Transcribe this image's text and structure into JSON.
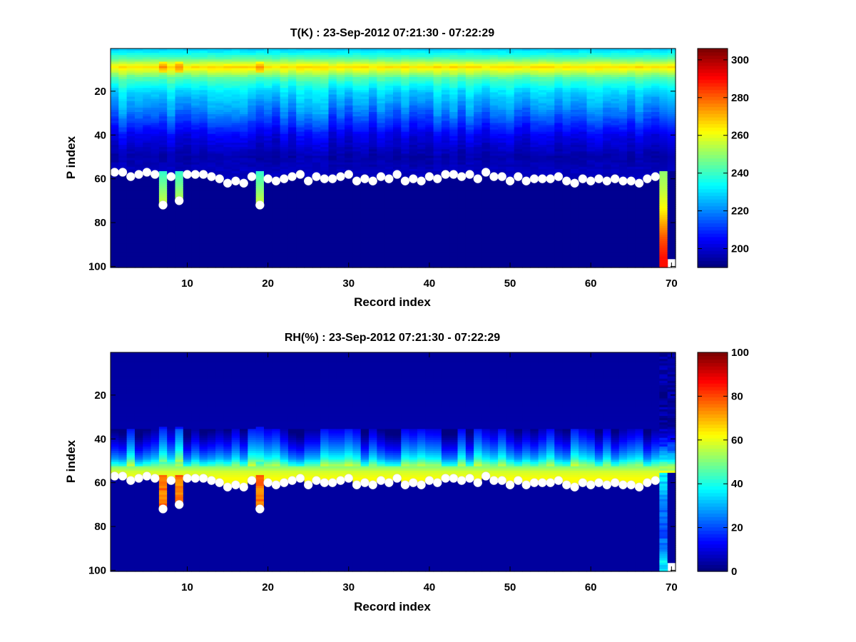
{
  "chart_data": [
    {
      "type": "heatmap",
      "title": "T(K) : 23-Sep-2012 07:21:30 - 07:22:29",
      "xlabel": "Record index",
      "ylabel": "P index",
      "xlim": [
        0.5,
        70.5
      ],
      "ylim": [
        100.5,
        0.5
      ],
      "y_reversed": true,
      "xticks": [
        10,
        20,
        30,
        40,
        50,
        60,
        70
      ],
      "yticks": [
        20,
        40,
        60,
        80,
        100
      ],
      "colormap": "jet",
      "clim": [
        190,
        306
      ],
      "colorbar_ticks": [
        200,
        220,
        240,
        260,
        280,
        300
      ],
      "record_count": 70,
      "level_count": 100,
      "tropopause_peak": {
        "p_index": 9,
        "value_k": 266
      },
      "profile_knots": {
        "p_index": [
          1,
          5,
          9,
          14,
          20,
          30,
          40,
          50,
          56
        ],
        "value_k": [
          228,
          243,
          266,
          243,
          230,
          218,
          203,
          195,
          197
        ]
      },
      "below_surface_value_k": 192,
      "last_record_profile": {
        "p_index": [
          57,
          65,
          73,
          80,
          87,
          96
        ],
        "value_k": [
          250,
          255,
          262,
          272,
          282,
          290
        ]
      },
      "missing_levels_last_record": {
        "from_p_index": 97,
        "to_p_index": 100
      },
      "surface_markers": {
        "marker_color": "#ffffff",
        "record": [
          1,
          2,
          3,
          4,
          5,
          6,
          7,
          8,
          9,
          10,
          11,
          12,
          13,
          14,
          15,
          16,
          17,
          18,
          19,
          20,
          21,
          22,
          23,
          24,
          25,
          26,
          27,
          28,
          29,
          30,
          31,
          32,
          33,
          34,
          35,
          36,
          37,
          38,
          39,
          40,
          41,
          42,
          43,
          44,
          45,
          46,
          47,
          48,
          49,
          50,
          51,
          52,
          53,
          54,
          55,
          56,
          57,
          58,
          59,
          60,
          61,
          62,
          63,
          64,
          65,
          66,
          67,
          68
        ],
        "p_index": [
          57,
          57,
          59,
          58,
          57,
          58,
          72,
          59,
          70,
          58,
          58,
          58,
          59,
          60,
          62,
          61,
          62,
          59,
          72,
          60,
          61,
          60,
          59,
          58,
          61,
          59,
          60,
          60,
          59,
          58,
          61,
          60,
          61,
          59,
          60,
          58,
          61,
          60,
          61,
          59,
          60,
          58,
          58,
          59,
          58,
          60,
          57,
          59,
          59,
          61,
          59,
          61,
          60,
          60,
          60,
          59,
          61,
          62,
          60,
          61,
          60,
          61,
          60,
          61,
          61,
          62,
          60,
          59
        ]
      }
    },
    {
      "type": "heatmap",
      "title": "RH(%) : 23-Sep-2012 07:21:30 - 07:22:29",
      "xlabel": "Record index",
      "ylabel": "P index",
      "xlim": [
        0.5,
        70.5
      ],
      "ylim": [
        100.5,
        0.5
      ],
      "y_reversed": true,
      "xticks": [
        10,
        20,
        30,
        40,
        50,
        60,
        70
      ],
      "yticks": [
        20,
        40,
        60,
        80,
        100
      ],
      "colormap": "jet",
      "clim": [
        0,
        100
      ],
      "colorbar_ticks": [
        0,
        20,
        40,
        60,
        80,
        100
      ],
      "record_count": 70,
      "level_count": 100,
      "profile_knots": {
        "p_index": [
          1,
          35,
          40,
          45,
          49,
          52,
          55,
          58
        ],
        "value_pct": [
          3,
          4,
          12,
          22,
          33,
          48,
          58,
          62
        ]
      },
      "below_surface_value_pct": 3,
      "extended_column_value_pct": 76,
      "last_record_profile": {
        "p_index": [
          57,
          70,
          85,
          96
        ],
        "value_pct": [
          35,
          25,
          20,
          35
        ]
      },
      "missing_levels_last_record": {
        "from_p_index": 97,
        "to_p_index": 100
      },
      "surface_markers": "same as T(K) panel"
    }
  ]
}
